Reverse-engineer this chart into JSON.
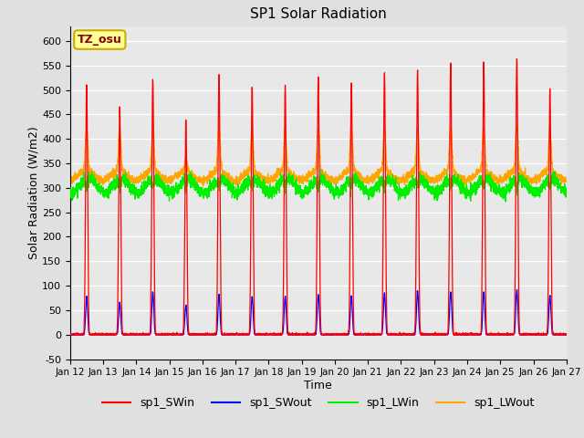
{
  "title": "SP1 Solar Radiation",
  "xlabel": "Time",
  "ylabel": "Solar Radiation (W/m2)",
  "ylim": [
    -50,
    630
  ],
  "background_color": "#e0e0e0",
  "plot_bg_color": "#e8e8e8",
  "grid_color": "white",
  "colors": {
    "sp1_SWin": "red",
    "sp1_SWout": "blue",
    "sp1_LWin": "#00ee00",
    "sp1_LWout": "orange"
  },
  "annotation_text": "TZ_osu",
  "annotation_bg": "#ffff99",
  "annotation_border": "#ccaa00",
  "start_day": 12,
  "end_day": 27,
  "n_points_per_day": 288,
  "sw_peaks": [
    510,
    465,
    525,
    438,
    530,
    505,
    510,
    525,
    515,
    535,
    540,
    555,
    555,
    565
  ],
  "sw_out_peaks": [
    78,
    65,
    88,
    60,
    82,
    78,
    78,
    82,
    80,
    85,
    90,
    88,
    88,
    92
  ],
  "lw_out_peaks": [
    415,
    410,
    415,
    355,
    420,
    415,
    410,
    415,
    415,
    415,
    415,
    420,
    420,
    420
  ]
}
